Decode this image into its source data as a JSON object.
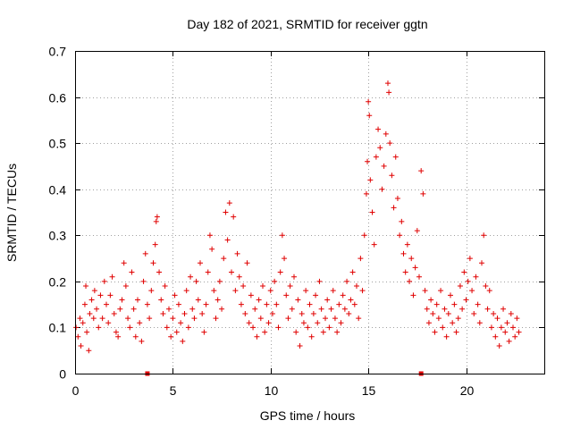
{
  "chart_data": {
    "type": "scatter",
    "title": "Day 182 of 2021, SRMTID for receiver ggtn",
    "xlabel": "GPS time / hours",
    "ylabel": "SRMTID / TECUs",
    "xlim": [
      0,
      24
    ],
    "ylim": [
      0,
      0.7
    ],
    "xticks": [
      0,
      5,
      10,
      15,
      20
    ],
    "yticks": [
      0,
      0.1,
      0.2,
      0.3,
      0.4,
      0.5,
      0.6,
      0.7
    ],
    "xtick_labels": [
      "0",
      "5",
      "10",
      "15",
      "20"
    ],
    "ytick_labels": [
      "0",
      "0.1",
      "0.2",
      "0.3",
      "0.4",
      "0.5",
      "0.6",
      "0.7"
    ],
    "grid": true,
    "marker": "+",
    "color": "#e00000",
    "gap_markers_x": [
      3.7,
      17.7
    ],
    "series": [
      {
        "name": "SRMTID",
        "points": [
          [
            0.05,
            0.1
          ],
          [
            0.15,
            0.08
          ],
          [
            0.25,
            0.12
          ],
          [
            0.3,
            0.06
          ],
          [
            0.4,
            0.11
          ],
          [
            0.5,
            0.15
          ],
          [
            0.55,
            0.19
          ],
          [
            0.6,
            0.09
          ],
          [
            0.7,
            0.05
          ],
          [
            0.75,
            0.13
          ],
          [
            0.85,
            0.16
          ],
          [
            0.95,
            0.12
          ],
          [
            1.0,
            0.18
          ],
          [
            1.1,
            0.14
          ],
          [
            1.2,
            0.1
          ],
          [
            1.3,
            0.17
          ],
          [
            1.4,
            0.12
          ],
          [
            1.5,
            0.2
          ],
          [
            1.6,
            0.15
          ],
          [
            1.7,
            0.11
          ],
          [
            1.8,
            0.17
          ],
          [
            1.9,
            0.21
          ],
          [
            2.0,
            0.13
          ],
          [
            2.1,
            0.09
          ],
          [
            2.2,
            0.08
          ],
          [
            2.3,
            0.14
          ],
          [
            2.4,
            0.16
          ],
          [
            2.5,
            0.24
          ],
          [
            2.6,
            0.19
          ],
          [
            2.7,
            0.12
          ],
          [
            2.8,
            0.1
          ],
          [
            2.9,
            0.22
          ],
          [
            3.0,
            0.14
          ],
          [
            3.1,
            0.08
          ],
          [
            3.2,
            0.16
          ],
          [
            3.3,
            0.11
          ],
          [
            3.4,
            0.07
          ],
          [
            3.5,
            0.2
          ],
          [
            3.6,
            0.26
          ],
          [
            3.7,
            0.15
          ],
          [
            3.8,
            0.12
          ],
          [
            3.9,
            0.18
          ],
          [
            4.0,
            0.24
          ],
          [
            4.1,
            0.28
          ],
          [
            4.15,
            0.33
          ],
          [
            4.2,
            0.34
          ],
          [
            4.3,
            0.22
          ],
          [
            4.4,
            0.16
          ],
          [
            4.5,
            0.13
          ],
          [
            4.6,
            0.19
          ],
          [
            4.7,
            0.1
          ],
          [
            4.8,
            0.14
          ],
          [
            4.9,
            0.08
          ],
          [
            5.0,
            0.12
          ],
          [
            5.1,
            0.17
          ],
          [
            5.2,
            0.09
          ],
          [
            5.3,
            0.15
          ],
          [
            5.4,
            0.11
          ],
          [
            5.5,
            0.07
          ],
          [
            5.6,
            0.13
          ],
          [
            5.7,
            0.18
          ],
          [
            5.8,
            0.1
          ],
          [
            5.9,
            0.21
          ],
          [
            6.0,
            0.14
          ],
          [
            6.1,
            0.12
          ],
          [
            6.2,
            0.2
          ],
          [
            6.3,
            0.16
          ],
          [
            6.4,
            0.24
          ],
          [
            6.5,
            0.13
          ],
          [
            6.6,
            0.09
          ],
          [
            6.7,
            0.15
          ],
          [
            6.8,
            0.22
          ],
          [
            6.9,
            0.3
          ],
          [
            7.0,
            0.27
          ],
          [
            7.1,
            0.18
          ],
          [
            7.2,
            0.12
          ],
          [
            7.3,
            0.16
          ],
          [
            7.4,
            0.2
          ],
          [
            7.5,
            0.14
          ],
          [
            7.6,
            0.25
          ],
          [
            7.7,
            0.35
          ],
          [
            7.8,
            0.29
          ],
          [
            7.9,
            0.37
          ],
          [
            8.0,
            0.22
          ],
          [
            8.1,
            0.34
          ],
          [
            8.2,
            0.18
          ],
          [
            8.3,
            0.26
          ],
          [
            8.4,
            0.21
          ],
          [
            8.5,
            0.15
          ],
          [
            8.6,
            0.19
          ],
          [
            8.7,
            0.13
          ],
          [
            8.8,
            0.24
          ],
          [
            8.9,
            0.11
          ],
          [
            9.0,
            0.17
          ],
          [
            9.1,
            0.1
          ],
          [
            9.2,
            0.14
          ],
          [
            9.3,
            0.08
          ],
          [
            9.4,
            0.16
          ],
          [
            9.5,
            0.12
          ],
          [
            9.6,
            0.19
          ],
          [
            9.7,
            0.09
          ],
          [
            9.8,
            0.15
          ],
          [
            9.9,
            0.11
          ],
          [
            10.0,
            0.18
          ],
          [
            10.1,
            0.13
          ],
          [
            10.2,
            0.2
          ],
          [
            10.3,
            0.15
          ],
          [
            10.4,
            0.1
          ],
          [
            10.5,
            0.22
          ],
          [
            10.6,
            0.3
          ],
          [
            10.7,
            0.25
          ],
          [
            10.8,
            0.17
          ],
          [
            10.9,
            0.12
          ],
          [
            11.0,
            0.19
          ],
          [
            11.1,
            0.14
          ],
          [
            11.2,
            0.21
          ],
          [
            11.3,
            0.09
          ],
          [
            11.4,
            0.16
          ],
          [
            11.5,
            0.06
          ],
          [
            11.6,
            0.13
          ],
          [
            11.7,
            0.11
          ],
          [
            11.8,
            0.18
          ],
          [
            11.9,
            0.1
          ],
          [
            12.0,
            0.15
          ],
          [
            12.1,
            0.08
          ],
          [
            12.2,
            0.13
          ],
          [
            12.3,
            0.17
          ],
          [
            12.4,
            0.11
          ],
          [
            12.5,
            0.2
          ],
          [
            12.6,
            0.14
          ],
          [
            12.7,
            0.09
          ],
          [
            12.8,
            0.12
          ],
          [
            12.9,
            0.16
          ],
          [
            13.0,
            0.1
          ],
          [
            13.1,
            0.14
          ],
          [
            13.2,
            0.18
          ],
          [
            13.3,
            0.12
          ],
          [
            13.4,
            0.09
          ],
          [
            13.5,
            0.15
          ],
          [
            13.6,
            0.11
          ],
          [
            13.7,
            0.17
          ],
          [
            13.8,
            0.14
          ],
          [
            13.9,
            0.2
          ],
          [
            14.0,
            0.13
          ],
          [
            14.1,
            0.16
          ],
          [
            14.2,
            0.22
          ],
          [
            14.3,
            0.15
          ],
          [
            14.4,
            0.19
          ],
          [
            14.5,
            0.12
          ],
          [
            14.6,
            0.25
          ],
          [
            14.7,
            0.18
          ],
          [
            14.8,
            0.3
          ],
          [
            14.9,
            0.39
          ],
          [
            14.95,
            0.46
          ],
          [
            15.0,
            0.59
          ],
          [
            15.05,
            0.56
          ],
          [
            15.1,
            0.42
          ],
          [
            15.2,
            0.35
          ],
          [
            15.3,
            0.28
          ],
          [
            15.4,
            0.47
          ],
          [
            15.5,
            0.53
          ],
          [
            15.6,
            0.49
          ],
          [
            15.7,
            0.4
          ],
          [
            15.8,
            0.45
          ],
          [
            15.9,
            0.52
          ],
          [
            16.0,
            0.63
          ],
          [
            16.05,
            0.61
          ],
          [
            16.1,
            0.5
          ],
          [
            16.2,
            0.43
          ],
          [
            16.3,
            0.36
          ],
          [
            16.4,
            0.47
          ],
          [
            16.5,
            0.38
          ],
          [
            16.6,
            0.3
          ],
          [
            16.7,
            0.33
          ],
          [
            16.8,
            0.26
          ],
          [
            16.9,
            0.22
          ],
          [
            17.0,
            0.28
          ],
          [
            17.1,
            0.2
          ],
          [
            17.2,
            0.25
          ],
          [
            17.3,
            0.17
          ],
          [
            17.4,
            0.23
          ],
          [
            17.5,
            0.31
          ],
          [
            17.6,
            0.21
          ],
          [
            17.7,
            0.44
          ],
          [
            17.8,
            0.39
          ],
          [
            17.9,
            0.18
          ],
          [
            18.0,
            0.14
          ],
          [
            18.1,
            0.11
          ],
          [
            18.2,
            0.16
          ],
          [
            18.3,
            0.13
          ],
          [
            18.4,
            0.09
          ],
          [
            18.5,
            0.15
          ],
          [
            18.6,
            0.12
          ],
          [
            18.7,
            0.18
          ],
          [
            18.8,
            0.1
          ],
          [
            18.9,
            0.14
          ],
          [
            19.0,
            0.08
          ],
          [
            19.1,
            0.13
          ],
          [
            19.2,
            0.17
          ],
          [
            19.3,
            0.11
          ],
          [
            19.4,
            0.15
          ],
          [
            19.5,
            0.09
          ],
          [
            19.6,
            0.12
          ],
          [
            19.7,
            0.19
          ],
          [
            19.8,
            0.14
          ],
          [
            19.9,
            0.22
          ],
          [
            20.0,
            0.16
          ],
          [
            20.1,
            0.2
          ],
          [
            20.2,
            0.25
          ],
          [
            20.3,
            0.18
          ],
          [
            20.4,
            0.13
          ],
          [
            20.5,
            0.21
          ],
          [
            20.6,
            0.15
          ],
          [
            20.7,
            0.11
          ],
          [
            20.8,
            0.24
          ],
          [
            20.9,
            0.3
          ],
          [
            21.0,
            0.19
          ],
          [
            21.1,
            0.14
          ],
          [
            21.2,
            0.18
          ],
          [
            21.3,
            0.1
          ],
          [
            21.4,
            0.13
          ],
          [
            21.5,
            0.08
          ],
          [
            21.6,
            0.12
          ],
          [
            21.7,
            0.06
          ],
          [
            21.8,
            0.1
          ],
          [
            21.9,
            0.14
          ],
          [
            22.0,
            0.09
          ],
          [
            22.1,
            0.11
          ],
          [
            22.2,
            0.07
          ],
          [
            22.3,
            0.13
          ],
          [
            22.4,
            0.1
          ],
          [
            22.5,
            0.08
          ],
          [
            22.6,
            0.12
          ],
          [
            22.7,
            0.09
          ]
        ]
      }
    ]
  }
}
